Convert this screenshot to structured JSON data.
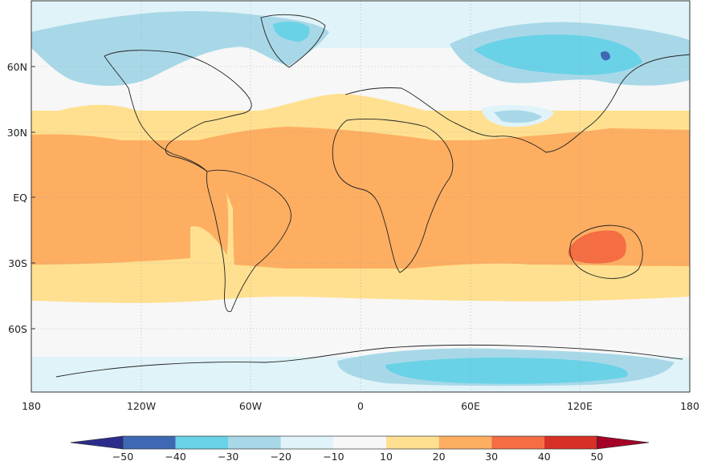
{
  "map": {
    "lon_ticks": [
      "180",
      "120W",
      "60W",
      "0",
      "60E",
      "120E",
      "180"
    ],
    "lat_ticks": [
      "60N",
      "30N",
      "EQ",
      "30S",
      "60S"
    ],
    "grid": true
  },
  "colorbar": {
    "ticks": [
      "−50",
      "−40",
      "−30",
      "−20",
      "−10",
      "10",
      "20",
      "30",
      "40",
      "50"
    ],
    "colors": [
      "#3f68b4",
      "#69d2e7",
      "#a8d8e8",
      "#e0f3f8",
      "#f7f7f7",
      "#fee090",
      "#fdae61",
      "#f46d43",
      "#d73027"
    ],
    "arrow_low": "#2b2c8c",
    "arrow_high": "#a50026"
  },
  "palette": {
    "ocean_tropic": "#fdae61",
    "ocean_subtropic": "#fee090",
    "ocean_mid": "#f7f7f7",
    "polar_light": "#e0f3f8",
    "polar_mid": "#a8d8e8",
    "polar_cold": "#69d2e7",
    "hot": "#f46d43",
    "coldest": "#3f68b4"
  }
}
